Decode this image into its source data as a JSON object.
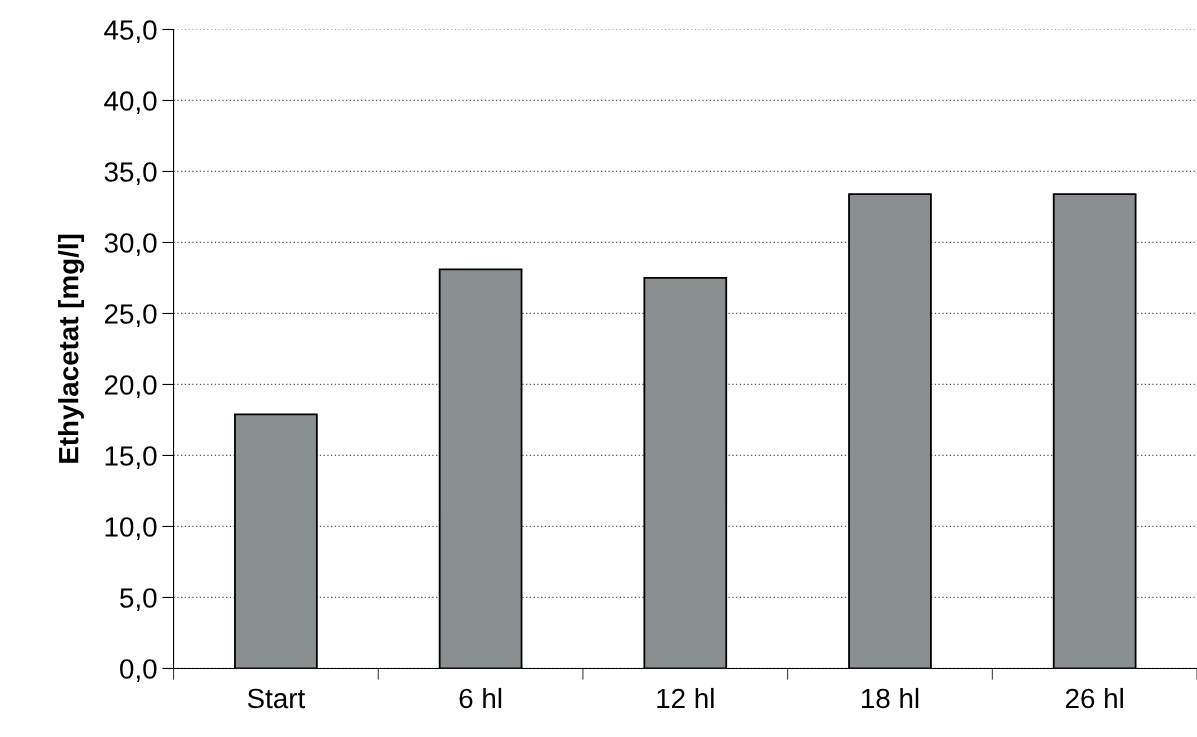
{
  "chart_data": {
    "type": "bar",
    "ylabel": "Ethylacetat [mg/l]",
    "categories": [
      "Start",
      "6 hl",
      "12 hl",
      "18 hl",
      "26 hl"
    ],
    "values": [
      17.9,
      28.1,
      27.5,
      33.4,
      33.4
    ],
    "color": "#8a9092",
    "ylim": [
      0,
      45
    ],
    "yticks": [
      {
        "value": 0,
        "label": "0,0"
      },
      {
        "value": 5,
        "label": "5,0"
      },
      {
        "value": 10,
        "label": "10,0"
      },
      {
        "value": 15,
        "label": "15,0"
      },
      {
        "value": 20,
        "label": "20,0"
      },
      {
        "value": 25,
        "label": "25,0"
      },
      {
        "value": 30,
        "label": "30,0"
      },
      {
        "value": 35,
        "label": "35,0"
      },
      {
        "value": 40,
        "label": "40,0"
      },
      {
        "value": 45,
        "label": "45,0"
      }
    ],
    "grid": "y"
  }
}
